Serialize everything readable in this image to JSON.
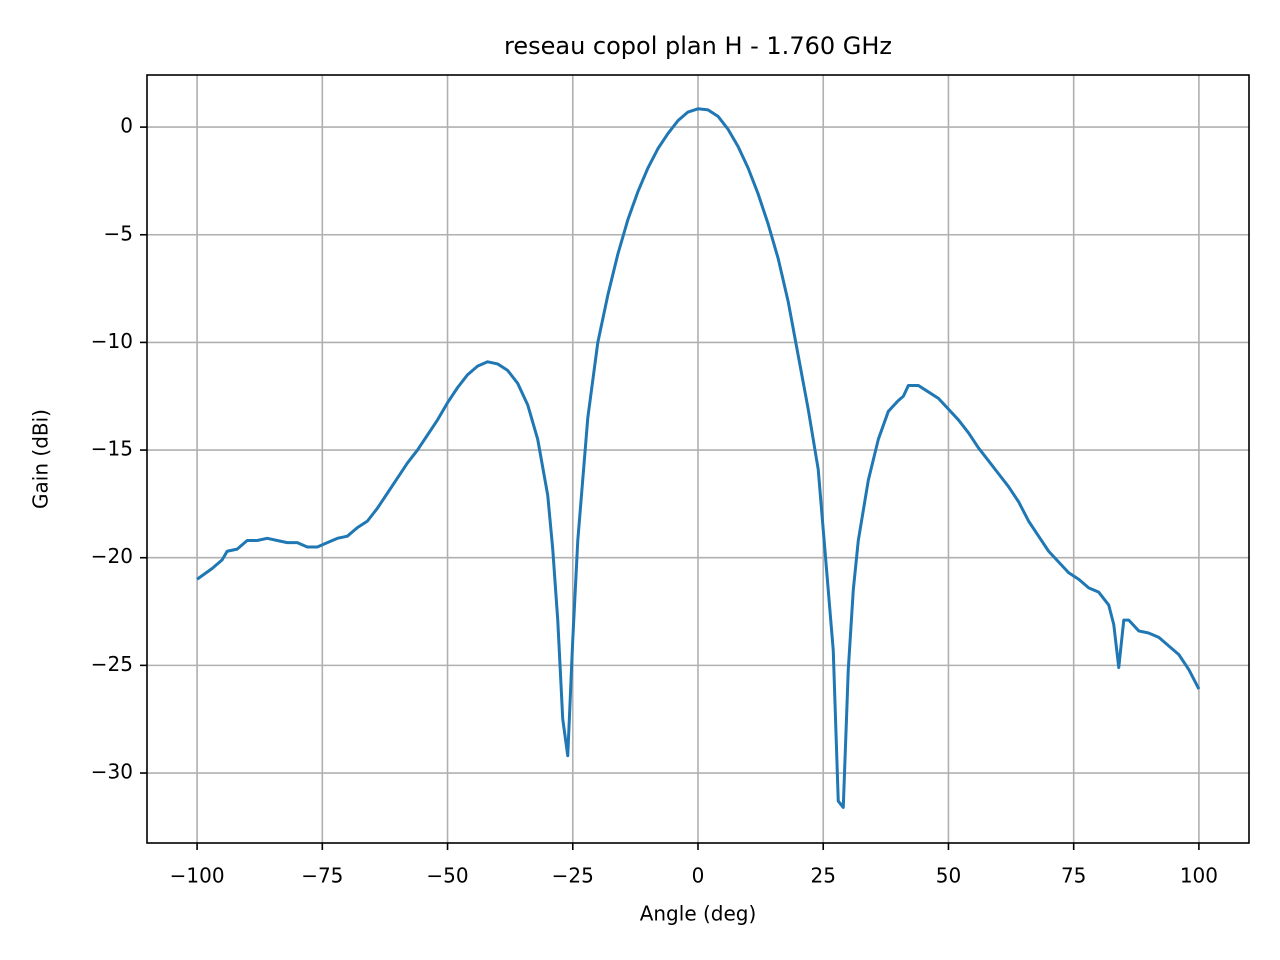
{
  "chart_data": {
    "type": "line",
    "title": "reseau copol plan H - 1.760 GHz",
    "xlabel": "Angle (deg)",
    "ylabel": "Gain (dBi)",
    "x": [
      -100,
      -97,
      -95,
      -94,
      -92,
      -90,
      -88,
      -86,
      -84,
      -82,
      -80,
      -78,
      -76,
      -74,
      -72,
      -70,
      -68,
      -66,
      -64,
      -62,
      -60,
      -58,
      -56,
      -54,
      -52,
      -50,
      -48,
      -46,
      -44,
      -42,
      -40,
      -38,
      -36,
      -34,
      -32,
      -30,
      -29,
      -28,
      -27,
      -26,
      -25,
      -24,
      -22,
      -20,
      -18,
      -16,
      -14,
      -12,
      -10,
      -8,
      -6,
      -4,
      -2,
      0,
      2,
      4,
      6,
      8,
      10,
      12,
      14,
      16,
      18,
      20,
      22,
      24,
      25,
      26,
      27,
      28,
      29,
      30,
      31,
      32,
      34,
      36,
      38,
      40,
      41,
      42,
      44,
      46,
      48,
      50,
      52,
      54,
      56,
      58,
      60,
      62,
      64,
      66,
      68,
      70,
      72,
      74,
      76,
      78,
      80,
      82,
      83,
      84,
      85,
      86,
      88,
      90,
      92,
      94,
      96,
      98,
      100
    ],
    "series": [
      {
        "name": "Gain",
        "color": "#1f77b4",
        "values": [
          -21.0,
          -20.5,
          -20.1,
          -19.7,
          -19.6,
          -19.2,
          -19.2,
          -19.1,
          -19.2,
          -19.3,
          -19.3,
          -19.5,
          -19.5,
          -19.3,
          -19.1,
          -19.0,
          -18.6,
          -18.3,
          -17.7,
          -17.0,
          -16.3,
          -15.6,
          -15.0,
          -14.3,
          -13.6,
          -12.8,
          -12.1,
          -11.5,
          -11.1,
          -10.9,
          -11.0,
          -11.3,
          -11.9,
          -12.9,
          -14.5,
          -17.1,
          -19.6,
          -22.9,
          -27.5,
          -29.2,
          -23.8,
          -19.2,
          -13.5,
          -10.0,
          -7.8,
          -5.9,
          -4.3,
          -3.0,
          -1.9,
          -1.0,
          -0.3,
          0.3,
          0.7,
          0.85,
          0.8,
          0.5,
          -0.1,
          -0.9,
          -1.9,
          -3.1,
          -4.5,
          -6.1,
          -8.1,
          -10.6,
          -13.1,
          -15.9,
          -18.7,
          -21.5,
          -24.3,
          -31.3,
          -31.6,
          -25.2,
          -21.5,
          -19.2,
          -16.4,
          -14.5,
          -13.2,
          -12.7,
          -12.5,
          -12.0,
          -12.0,
          -12.3,
          -12.6,
          -13.1,
          -13.6,
          -14.2,
          -14.9,
          -15.5,
          -16.1,
          -16.7,
          -17.4,
          -18.3,
          -19.0,
          -19.7,
          -20.2,
          -20.7,
          -21.0,
          -21.4,
          -21.6,
          -22.2,
          -23.1,
          -25.1,
          -22.9,
          -22.9,
          -23.4,
          -23.5,
          -23.7,
          -24.1,
          -24.5,
          -25.2,
          -26.1
        ]
      }
    ],
    "xlim": [
      -110,
      110
    ],
    "xticks": [
      {
        "value": -100,
        "label": "−100"
      },
      {
        "value": -75,
        "label": "−75"
      },
      {
        "value": -50,
        "label": "−50"
      },
      {
        "value": -25,
        "label": "−25"
      },
      0,
      25,
      50,
      75,
      100
    ],
    "ylim": [
      -33.25,
      2.42
    ],
    "yticks": [
      0,
      {
        "value": -5,
        "label": "−5"
      },
      {
        "value": -10,
        "label": "−10"
      },
      {
        "value": -15,
        "label": "−15"
      },
      {
        "value": -20,
        "label": "−20"
      },
      {
        "value": -25,
        "label": "−25"
      },
      {
        "value": -30,
        "label": "−30"
      }
    ],
    "grid": true
  }
}
